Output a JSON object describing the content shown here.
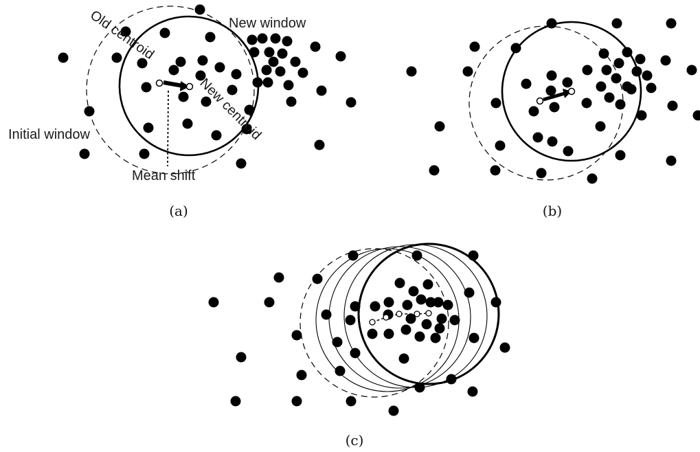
{
  "panels": {
    "a": {
      "caption": "(a)"
    },
    "b": {
      "caption": "(b)"
    },
    "c": {
      "caption": "(c)"
    }
  },
  "annotations": {
    "old_centroid": "Old centroid",
    "new_centroid": "New centroid",
    "new_window": "New window",
    "initial_window": "Initial window",
    "mean_shift": "Mean shift"
  },
  "colors": {
    "point": "#000000",
    "centroid_fill": "#ffffff",
    "stroke": "#000000"
  }
}
